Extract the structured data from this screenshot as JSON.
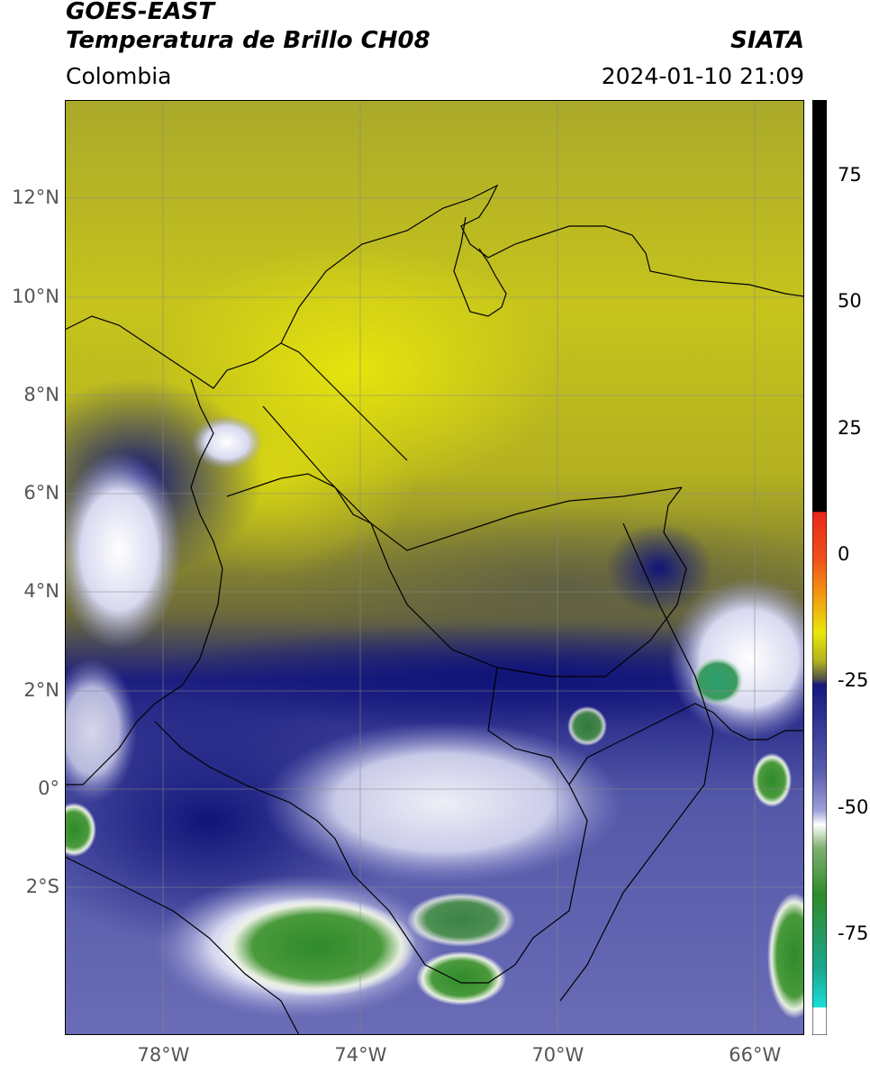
{
  "header": {
    "satellite": "GOES-EAST",
    "product": "Temperatura de Brillo CH08",
    "agency": "SIATA",
    "region": "Colombia",
    "datetime": "2024-01-10 21:09"
  },
  "map": {
    "lon_range": [
      -80,
      -65
    ],
    "lat_range": [
      -5,
      14
    ],
    "lat_ticks": [
      {
        "value": 12,
        "label": "12°N"
      },
      {
        "value": 10,
        "label": "10°N"
      },
      {
        "value": 8,
        "label": "8°N"
      },
      {
        "value": 6,
        "label": "6°N"
      },
      {
        "value": 4,
        "label": "4°N"
      },
      {
        "value": 2,
        "label": "2°N"
      },
      {
        "value": 0,
        "label": "0°"
      },
      {
        "value": -2,
        "label": "2°S"
      }
    ],
    "lon_ticks": [
      {
        "value": -78,
        "label": "78°W"
      },
      {
        "value": -74,
        "label": "74°W"
      },
      {
        "value": -70,
        "label": "70°W"
      },
      {
        "value": -66,
        "label": "66°W"
      }
    ],
    "grid": true
  },
  "colorbar": {
    "range": [
      -95,
      90
    ],
    "ticks": [
      {
        "value": 75,
        "label": "75"
      },
      {
        "value": 50,
        "label": "50"
      },
      {
        "value": 25,
        "label": "25"
      },
      {
        "value": 0,
        "label": "0"
      },
      {
        "value": -25,
        "label": "-25"
      },
      {
        "value": -50,
        "label": "-50"
      },
      {
        "value": -75,
        "label": "-75"
      }
    ],
    "colors": {
      "black": "#000000",
      "red": "#e8261a",
      "orange": "#f39a12",
      "yellow": "#e8e60a",
      "olive": "#b3b21e",
      "darkgray": "#4e4e4e",
      "navy": "#14187e",
      "lavender": "#9ea0d8",
      "white": "#ffffff",
      "green": "#2f8a2a",
      "cyan": "#18e0d8"
    }
  }
}
